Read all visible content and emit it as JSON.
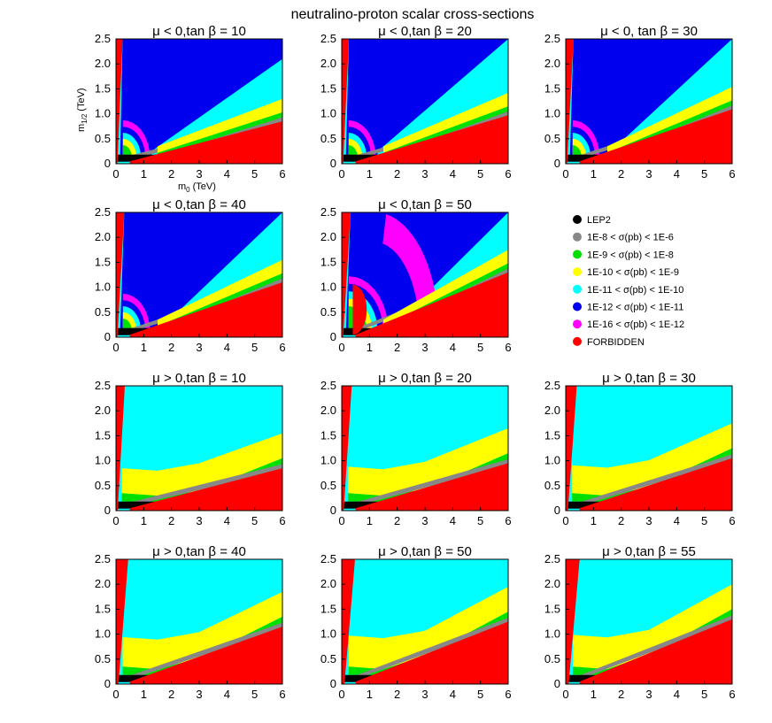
{
  "chart_data": {
    "type": "heatmap",
    "title": "neutralino-proton scalar cross-sections",
    "xlabel_main": "m",
    "xlabel_sub": "0",
    "xlabel_unit": "(TeV)",
    "ylabel_main": "m",
    "ylabel_sub": "1/2",
    "ylabel_unit": "(TeV)",
    "x_ticks": [
      "0",
      "1",
      "2",
      "3",
      "4",
      "5",
      "6"
    ],
    "y_ticks": [
      "0",
      "0.5",
      "1.0",
      "1.5",
      "2.0",
      "2.5"
    ],
    "xlim": [
      0,
      6
    ],
    "ylim": [
      0,
      2.5
    ],
    "legend": [
      {
        "label": "LEP2",
        "color": "#000000"
      },
      {
        "label": "1E-8 < σ(pb) < 1E-6",
        "color": "#888888"
      },
      {
        "label": "1E-9 < σ(pb) < 1E-8",
        "color": "#00e000"
      },
      {
        "label": "1E-10 < σ(pb) < 1E-9",
        "color": "#ffff00"
      },
      {
        "label": "1E-11 < σ(pb) < 1E-10",
        "color": "#00ffff"
      },
      {
        "label": "1E-12 < σ(pb) < 1E-11",
        "color": "#0000ee"
      },
      {
        "label": "1E-16 < σ(pb) < 1E-12",
        "color": "#ff00ff"
      },
      {
        "label": "FORBIDDEN",
        "color": "#ff0000"
      }
    ],
    "panels": [
      {
        "title": "μ < 0,tan β = 10",
        "sign": "neg",
        "tanb": 10
      },
      {
        "title": "μ < 0,tan β = 20",
        "sign": "neg",
        "tanb": 20
      },
      {
        "title": "μ < 0, tan β = 30",
        "sign": "neg",
        "tanb": 30
      },
      {
        "title": "μ < 0,tan β = 40",
        "sign": "neg",
        "tanb": 40
      },
      {
        "title": "μ < 0,tan β = 50",
        "sign": "neg",
        "tanb": 50
      },
      {
        "title": "μ > 0,tan β = 10",
        "sign": "pos",
        "tanb": 10
      },
      {
        "title": "μ > 0,tan β = 20",
        "sign": "pos",
        "tanb": 20
      },
      {
        "title": "μ > 0,tan β = 30",
        "sign": "pos",
        "tanb": 30
      },
      {
        "title": "μ > 0,tan β = 40",
        "sign": "pos",
        "tanb": 40
      },
      {
        "title": "μ > 0,tan β = 50",
        "sign": "pos",
        "tanb": 50
      },
      {
        "title": "μ > 0,tan β = 55",
        "sign": "pos",
        "tanb": 55
      }
    ]
  }
}
